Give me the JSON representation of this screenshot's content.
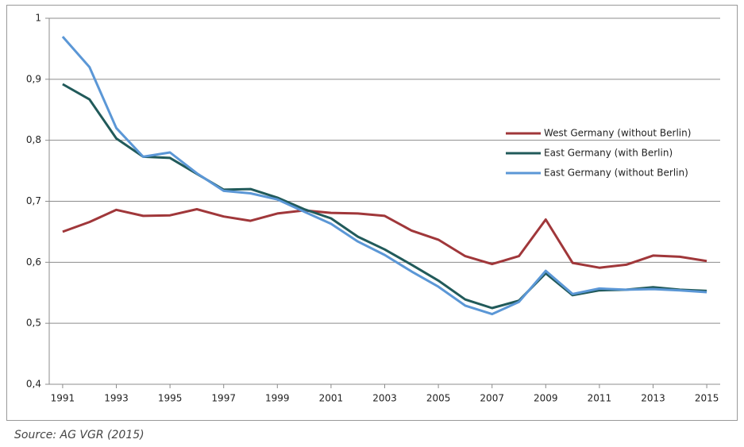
{
  "chart_data": {
    "type": "line",
    "source": "Source: AG VGR (2015)",
    "x": [
      1991,
      1992,
      1993,
      1994,
      1995,
      1996,
      1997,
      1998,
      1999,
      2000,
      2001,
      2002,
      2003,
      2004,
      2005,
      2006,
      2007,
      2008,
      2009,
      2010,
      2011,
      2012,
      2013,
      2014,
      2015
    ],
    "xlim": [
      1990.5,
      2015.5
    ],
    "xticks": [
      1991,
      1993,
      1995,
      1997,
      1999,
      2001,
      2003,
      2005,
      2007,
      2009,
      2011,
      2013,
      2015
    ],
    "ylim": [
      0.4,
      1
    ],
    "yticks": [
      {
        "value": 0.4,
        "label": "0,4"
      },
      {
        "value": 0.5,
        "label": "0,5"
      },
      {
        "value": 0.6,
        "label": "0,6"
      },
      {
        "value": 0.7,
        "label": "0,7"
      },
      {
        "value": 0.8,
        "label": "0,8"
      },
      {
        "value": 0.9,
        "label": "0,9"
      },
      1
    ],
    "grid": true,
    "legend": "center right",
    "series": [
      {
        "name": "West Germany (without Berlin)",
        "color": "#a0373a",
        "values": [
          0.65,
          0.666,
          0.686,
          0.676,
          0.677,
          0.687,
          0.675,
          0.668,
          0.68,
          0.685,
          0.681,
          0.68,
          0.676,
          0.652,
          0.637,
          0.61,
          0.597,
          0.61,
          0.67,
          0.599,
          0.591,
          0.596,
          0.611,
          0.609,
          0.602
        ]
      },
      {
        "name": "East Germany (with Berlin)",
        "color": "#215a5a",
        "values": [
          0.892,
          0.867,
          0.803,
          0.773,
          0.771,
          0.745,
          0.719,
          0.72,
          0.706,
          0.687,
          0.672,
          0.642,
          0.621,
          0.596,
          0.57,
          0.539,
          0.525,
          0.537,
          0.582,
          0.546,
          0.554,
          0.555,
          0.559,
          0.555,
          0.553
        ]
      },
      {
        "name": "East Germany (without Berlin)",
        "color": "#5b97d6",
        "values": [
          0.97,
          0.92,
          0.82,
          0.773,
          0.78,
          0.746,
          0.717,
          0.713,
          0.703,
          0.683,
          0.663,
          0.634,
          0.612,
          0.585,
          0.56,
          0.529,
          0.515,
          0.535,
          0.586,
          0.548,
          0.557,
          0.555,
          0.556,
          0.554,
          0.551
        ]
      }
    ]
  }
}
